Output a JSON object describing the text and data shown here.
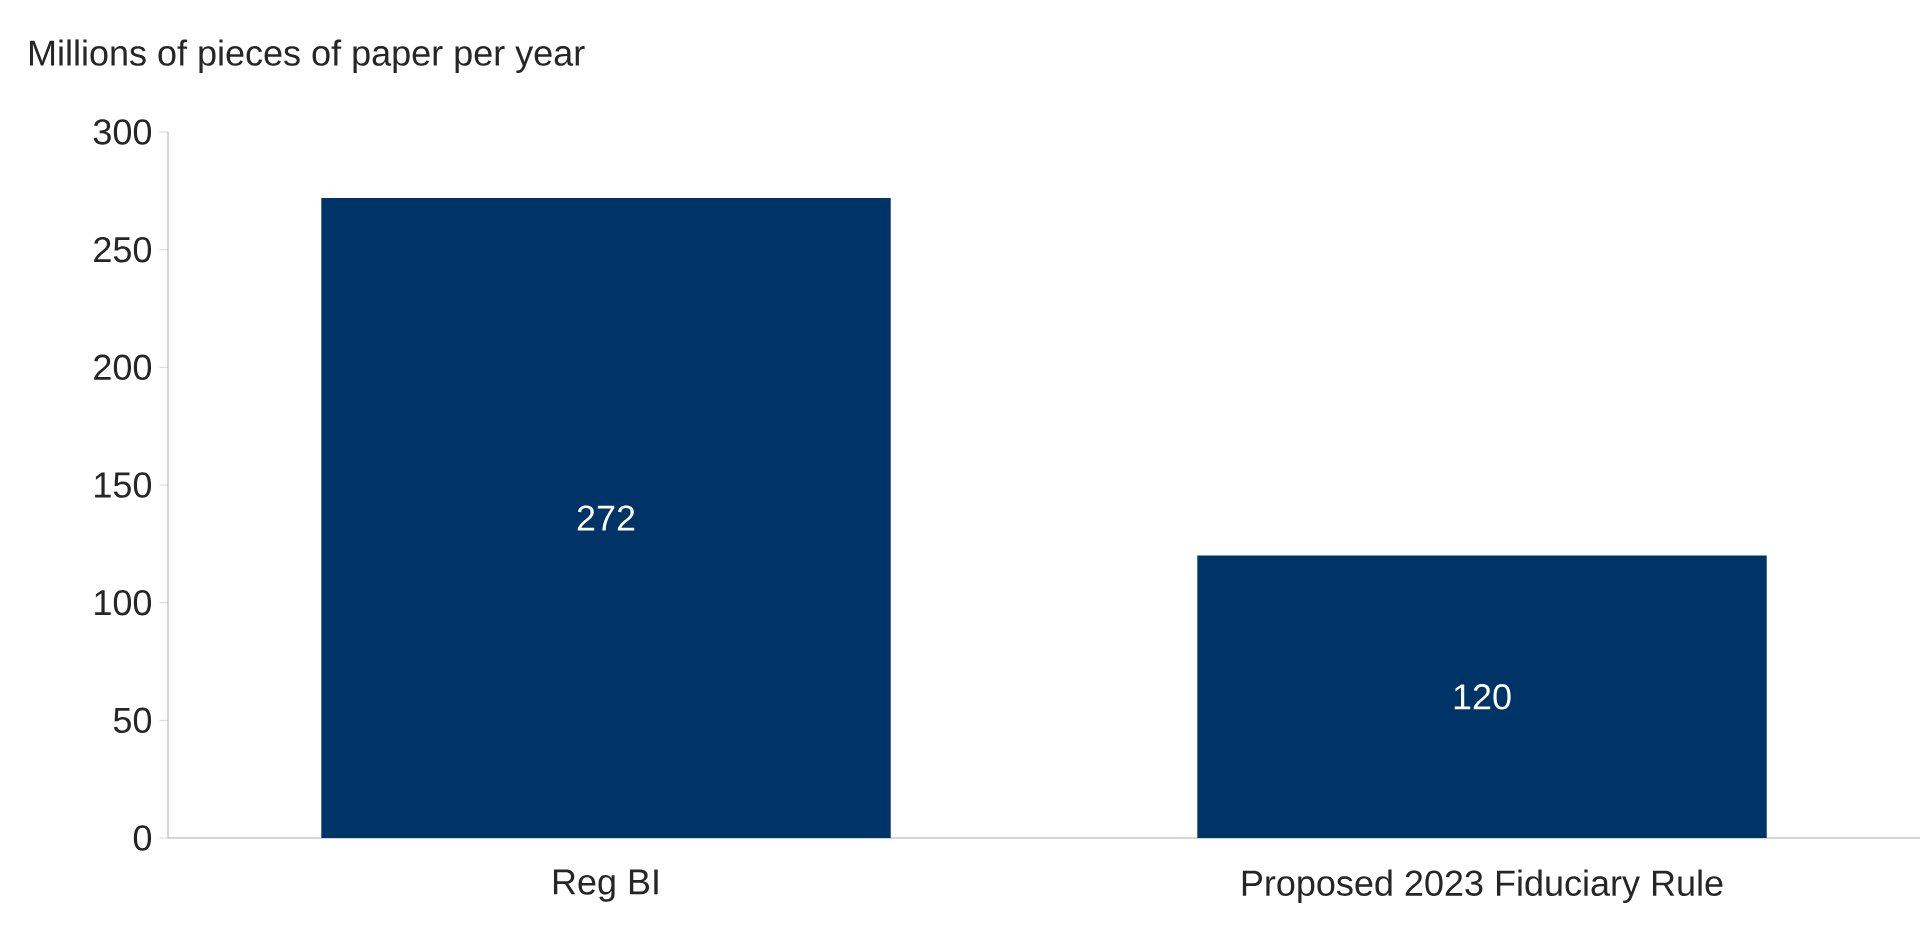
{
  "chart_data": {
    "type": "bar",
    "ylabel": "Millions of pieces of paper per year",
    "categories": [
      "Reg BI",
      "Proposed 2023 Fiduciary Rule"
    ],
    "values": [
      272,
      120
    ],
    "color": "#003366",
    "ylim": [
      0,
      300
    ],
    "yticks": [
      0,
      50,
      100,
      150,
      200,
      250,
      300
    ],
    "data_labels": true
  }
}
